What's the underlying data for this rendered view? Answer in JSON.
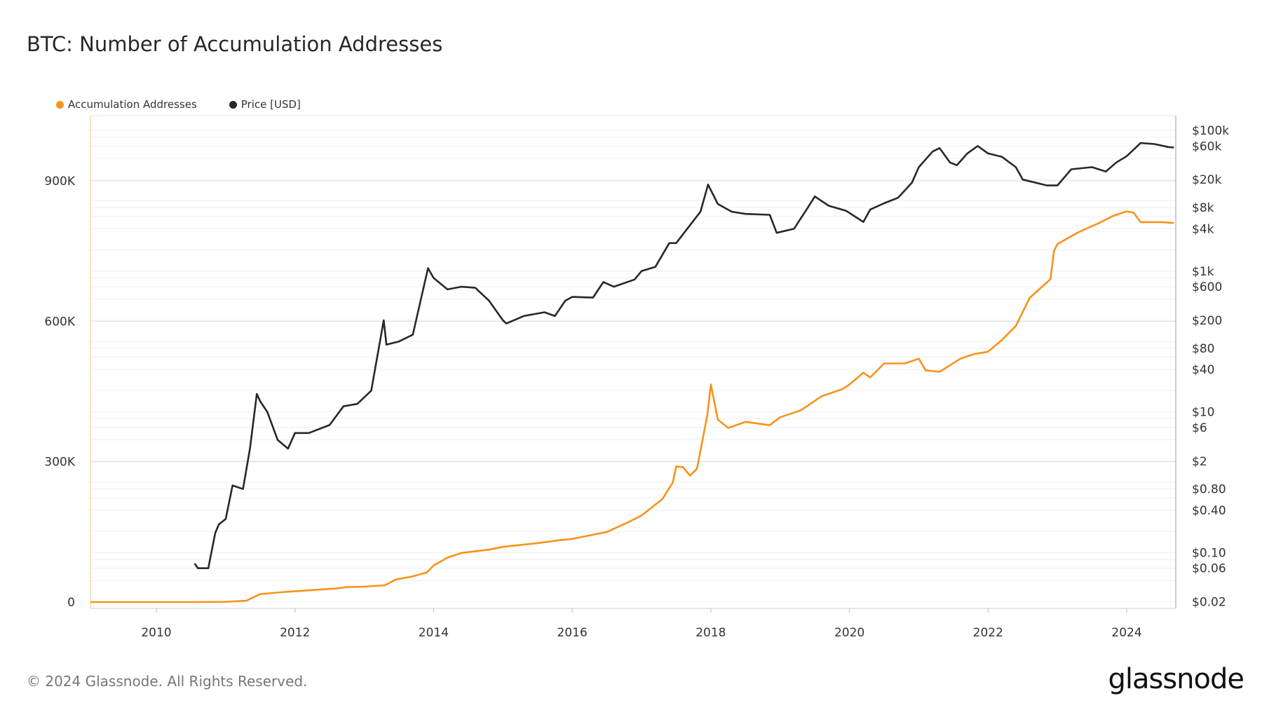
{
  "chart_data": {
    "type": "line",
    "title": "BTC: Number of Accumulation Addresses",
    "legend_position": "top-left",
    "grid": true,
    "x_ticks": [
      "2010",
      "2012",
      "2014",
      "2016",
      "2018",
      "2020",
      "2022",
      "2024"
    ],
    "xlim": [
      2009.05,
      2024.7
    ],
    "y_left": {
      "ticks": [
        "0",
        "300K",
        "600K",
        "900K"
      ],
      "tick_values": [
        0,
        300000,
        600000,
        900000
      ],
      "lim": [
        0,
        1050000
      ],
      "scale": "linear"
    },
    "y_right": {
      "ticks": [
        "$100k",
        "$60k",
        "$20k",
        "$8k",
        "$4k",
        "$1k",
        "$600",
        "$200",
        "$80",
        "$40",
        "$10",
        "$6",
        "$2",
        "$0.80",
        "$0.40",
        "$0.10",
        "$0.06",
        "$0.02"
      ],
      "tick_values": [
        100000,
        60000,
        20000,
        8000,
        4000,
        1000,
        600,
        200,
        80,
        40,
        10,
        6,
        2,
        0.8,
        0.4,
        0.1,
        0.06,
        0.02
      ],
      "lim": [
        0.02,
        100000
      ],
      "scale": "log"
    },
    "series": [
      {
        "name": "Accumulation Addresses",
        "axis": "left",
        "color": "#f7931a",
        "x": [
          2009.05,
          2010.5,
          2011.0,
          2011.3,
          2011.4,
          2011.5,
          2011.8,
          2012.0,
          2012.3,
          2012.6,
          2012.75,
          2013.0,
          2013.3,
          2013.45,
          2013.7,
          2013.9,
          2014.0,
          2014.2,
          2014.4,
          2014.8,
          2015.0,
          2015.5,
          2015.8,
          2016.0,
          2016.5,
          2016.8,
          2017.0,
          2017.3,
          2017.45,
          2017.5,
          2017.6,
          2017.7,
          2017.8,
          2017.95,
          2018.0,
          2018.1,
          2018.25,
          2018.5,
          2018.85,
          2019.0,
          2019.3,
          2019.6,
          2019.9,
          2020.0,
          2020.2,
          2020.3,
          2020.5,
          2020.8,
          2021.0,
          2021.1,
          2021.3,
          2021.6,
          2021.8,
          2022.0,
          2022.2,
          2022.4,
          2022.6,
          2022.9,
          2022.95,
          2023.0,
          2023.3,
          2023.6,
          2023.8,
          2024.0,
          2024.1,
          2024.2,
          2024.5,
          2024.68
        ],
        "y": [
          0,
          0,
          500,
          3000,
          10000,
          17000,
          21000,
          23000,
          26000,
          29000,
          32000,
          33000,
          36000,
          48000,
          55000,
          63000,
          78000,
          95000,
          105000,
          112000,
          118000,
          126000,
          132000,
          135000,
          150000,
          170000,
          185000,
          220000,
          255000,
          290000,
          288000,
          270000,
          285000,
          400000,
          465000,
          390000,
          372000,
          385000,
          378000,
          395000,
          410000,
          440000,
          455000,
          465000,
          490000,
          480000,
          510000,
          510000,
          520000,
          495000,
          492000,
          520000,
          530000,
          535000,
          560000,
          590000,
          650000,
          690000,
          750000,
          765000,
          790000,
          810000,
          825000,
          835000,
          832000,
          812000,
          812000,
          810000
        ]
      },
      {
        "name": "Price [USD]",
        "axis": "right",
        "color": "#26282b",
        "x": [
          2010.55,
          2010.6,
          2010.75,
          2010.85,
          2010.9,
          2011.0,
          2011.1,
          2011.25,
          2011.35,
          2011.45,
          2011.5,
          2011.6,
          2011.75,
          2011.9,
          2012.0,
          2012.2,
          2012.5,
          2012.7,
          2012.9,
          2013.1,
          2013.28,
          2013.32,
          2013.5,
          2013.7,
          2013.92,
          2014.0,
          2014.2,
          2014.4,
          2014.6,
          2014.8,
          2015.0,
          2015.05,
          2015.3,
          2015.6,
          2015.75,
          2015.9,
          2016.0,
          2016.3,
          2016.45,
          2016.6,
          2016.9,
          2017.0,
          2017.2,
          2017.4,
          2017.5,
          2017.7,
          2017.85,
          2017.96,
          2018.1,
          2018.3,
          2018.5,
          2018.85,
          2018.95,
          2019.2,
          2019.4,
          2019.5,
          2019.7,
          2019.95,
          2020.2,
          2020.3,
          2020.5,
          2020.7,
          2020.9,
          2021.0,
          2021.2,
          2021.3,
          2021.45,
          2021.55,
          2021.7,
          2021.85,
          2022.0,
          2022.2,
          2022.4,
          2022.5,
          2022.85,
          2023.0,
          2023.2,
          2023.5,
          2023.7,
          2023.85,
          2024.0,
          2024.2,
          2024.4,
          2024.6,
          2024.68
        ],
        "y": [
          0.07,
          0.06,
          0.06,
          0.19,
          0.25,
          0.3,
          0.9,
          0.8,
          3,
          18,
          14,
          10,
          4,
          3,
          5,
          5,
          6.5,
          12,
          13,
          20,
          200,
          90,
          100,
          125,
          1100,
          800,
          550,
          600,
          580,
          380,
          200,
          180,
          230,
          260,
          230,
          380,
          430,
          420,
          700,
          600,
          760,
          1000,
          1150,
          2500,
          2500,
          4500,
          7000,
          17000,
          9000,
          7000,
          6500,
          6300,
          3500,
          4000,
          8000,
          11500,
          8500,
          7200,
          5000,
          7500,
          9200,
          11000,
          18000,
          30000,
          50000,
          56000,
          35000,
          32000,
          47000,
          60000,
          47000,
          42000,
          30000,
          20000,
          16500,
          16500,
          28000,
          30000,
          26000,
          35000,
          43000,
          66000,
          64000,
          58000,
          57000
        ]
      }
    ]
  },
  "legend": [
    "Accumulation Addresses",
    "Price [USD]"
  ],
  "footer": "© 2024 Glassnode. All Rights Reserved.",
  "logo": "glassnode"
}
